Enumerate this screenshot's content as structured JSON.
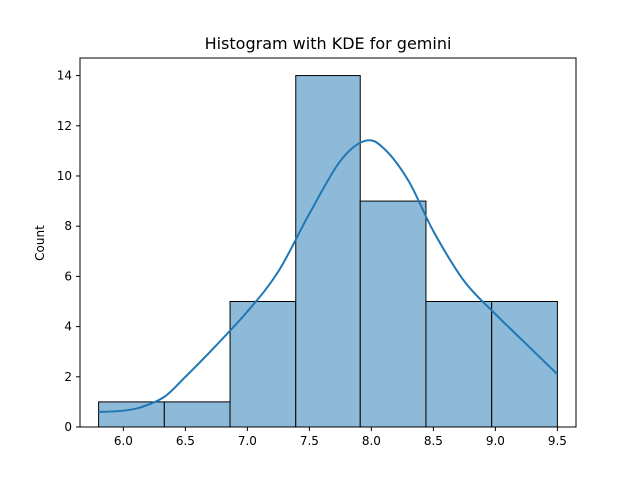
{
  "chart_data": {
    "type": "bar",
    "title": "Histogram with KDE for gemini",
    "xlabel": "",
    "ylabel": "Count",
    "xlim": [
      5.65,
      9.65
    ],
    "ylim": [
      0,
      14.7
    ],
    "xticks": [
      6.0,
      6.5,
      7.0,
      7.5,
      8.0,
      8.5,
      9.0,
      9.5
    ],
    "yticks": [
      0,
      2,
      4,
      6,
      8,
      10,
      12,
      14
    ],
    "bins": [
      {
        "x0": 5.8,
        "x1": 6.33,
        "count": 1
      },
      {
        "x0": 6.33,
        "x1": 6.86,
        "count": 1
      },
      {
        "x0": 6.86,
        "x1": 7.39,
        "count": 5
      },
      {
        "x0": 7.39,
        "x1": 7.91,
        "count": 14
      },
      {
        "x0": 7.91,
        "x1": 8.44,
        "count": 9
      },
      {
        "x0": 8.44,
        "x1": 8.97,
        "count": 5
      },
      {
        "x0": 8.97,
        "x1": 9.5,
        "count": 5
      }
    ],
    "kde": {
      "x": [
        5.8,
        6.0,
        6.15,
        6.33,
        6.5,
        6.7,
        7.0,
        7.25,
        7.5,
        7.75,
        7.95,
        8.1,
        8.3,
        8.5,
        8.75,
        9.0,
        9.25,
        9.5
      ],
      "y": [
        0.6,
        0.65,
        0.8,
        1.2,
        2.0,
        3.0,
        4.6,
        6.2,
        8.5,
        10.6,
        11.4,
        11.1,
        9.8,
        7.8,
        5.8,
        4.5,
        3.3,
        2.1
      ]
    },
    "grid": false,
    "legend": "none",
    "colors": {
      "bar_fill": "#8ebad9",
      "bar_edge": "#000000",
      "kde_line": "#1f77b4"
    }
  }
}
